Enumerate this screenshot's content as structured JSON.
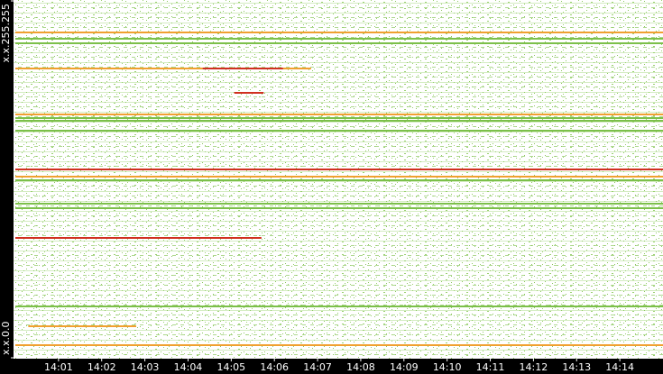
{
  "chart_data": {
    "type": "segments",
    "xlim": [
      0,
      15
    ],
    "ylim": [
      0,
      65535
    ],
    "xticks": [
      {
        "value": 1,
        "label": "14:01"
      },
      {
        "value": 2,
        "label": "14:02"
      },
      {
        "value": 3,
        "label": "14:03"
      },
      {
        "value": 4,
        "label": "14:04"
      },
      {
        "value": 5,
        "label": "14:05"
      },
      {
        "value": 6,
        "label": "14:06"
      },
      {
        "value": 7,
        "label": "14:07"
      },
      {
        "value": 8,
        "label": "14:08"
      },
      {
        "value": 9,
        "label": "14:09"
      },
      {
        "value": 10,
        "label": "14:10"
      },
      {
        "value": 11,
        "label": "14:11"
      },
      {
        "value": 12,
        "label": "14:12"
      },
      {
        "value": 13,
        "label": "14:13"
      },
      {
        "value": 14,
        "label": "14:14"
      }
    ],
    "yticks": [
      {
        "value": 0,
        "label": "x.x.0.0"
      },
      {
        "value": 65535,
        "label": "x.x.255.255"
      }
    ],
    "segments": [
      {
        "y": 59607,
        "x": [
          0,
          15
        ],
        "color": "#f0a030"
      },
      {
        "y": 58454,
        "x": [
          0,
          15
        ],
        "color": "#7cc04a"
      },
      {
        "y": 57631,
        "x": [
          0,
          15
        ],
        "color": "#7cc04a"
      },
      {
        "y": 53020,
        "x": [
          0,
          6.85
        ],
        "color": "#f0a030"
      },
      {
        "y": 53020,
        "x": [
          4.34,
          6.2
        ],
        "color": "#d03020"
      },
      {
        "y": 48574,
        "x": [
          5.07,
          5.75
        ],
        "color": "#d03020"
      },
      {
        "y": 44622,
        "x": [
          0,
          15
        ],
        "color": "#f0a030"
      },
      {
        "y": 43963,
        "x": [
          0,
          15
        ],
        "color": "#7cc04a"
      },
      {
        "y": 43469,
        "x": [
          0,
          15
        ],
        "color": "#7cc04a"
      },
      {
        "y": 41658,
        "x": [
          0,
          15
        ],
        "color": "#7cc04a"
      },
      {
        "y": 34578,
        "x": [
          0,
          15
        ],
        "color": "#d03020"
      },
      {
        "y": 33261,
        "x": [
          0,
          15
        ],
        "color": "#f0a030"
      },
      {
        "y": 32603,
        "x": [
          0,
          15
        ],
        "color": "#7cc04a"
      },
      {
        "y": 28322,
        "x": [
          0,
          15
        ],
        "color": "#7cc04a"
      },
      {
        "y": 27499,
        "x": [
          0,
          15
        ],
        "color": "#7cc04a"
      },
      {
        "y": 22065,
        "x": [
          0,
          5.7
        ],
        "color": "#d03020"
      },
      {
        "y": 9550,
        "x": [
          0,
          15
        ],
        "color": "#7cc04a"
      },
      {
        "y": 5928,
        "x": [
          0.3,
          2.8
        ],
        "color": "#f0a030"
      },
      {
        "y": 2470,
        "x": [
          0,
          15
        ],
        "color": "#f0a030"
      }
    ]
  }
}
